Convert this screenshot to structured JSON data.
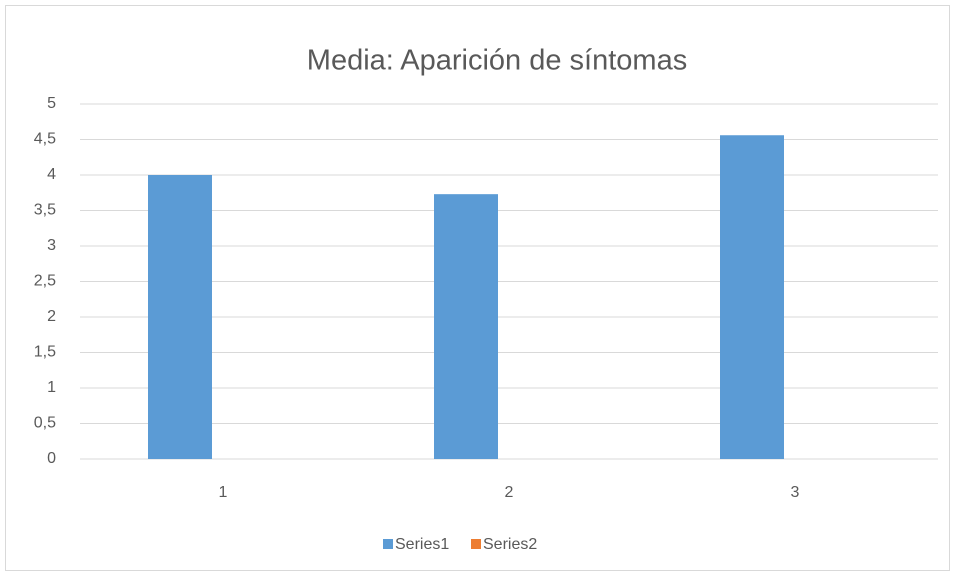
{
  "chart_data": {
    "type": "bar",
    "title": "Media: Aparición de síntomas",
    "categories": [
      "1",
      "2",
      "3"
    ],
    "series": [
      {
        "name": "Series1",
        "color": "#5b9bd5",
        "values": [
          4,
          3.73,
          4.56
        ]
      },
      {
        "name": "Series2",
        "color": "#ed7d31",
        "values": [
          null,
          null,
          null
        ]
      }
    ],
    "ylim": [
      0,
      5
    ],
    "yticks": [
      0,
      {
        "value": 0.5,
        "label": "0,5"
      },
      1,
      {
        "value": 1.5,
        "label": "1,5"
      },
      2,
      {
        "value": 2.5,
        "label": "2,5"
      },
      3,
      {
        "value": 3.5,
        "label": "3,5"
      },
      4,
      {
        "value": 4.5,
        "label": "4,5"
      },
      5
    ],
    "grid": true,
    "legend": "bottom"
  }
}
